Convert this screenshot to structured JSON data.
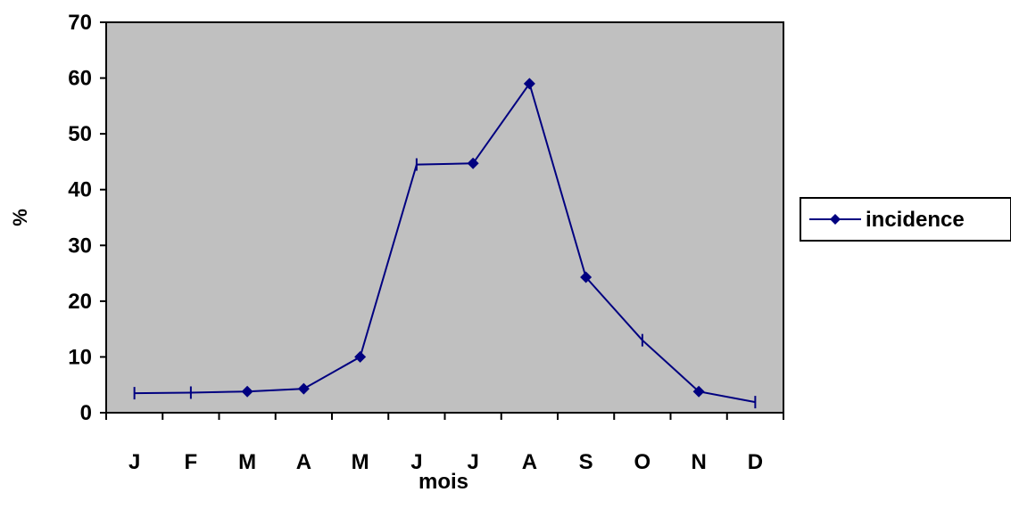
{
  "chart_data": {
    "type": "line",
    "xlabel": "mois",
    "ylabel": "%",
    "ylim": [
      0,
      70
    ],
    "yticks": [
      0,
      10,
      20,
      30,
      40,
      50,
      60,
      70
    ],
    "categories": [
      "J",
      "F",
      "M",
      "A",
      "M",
      "J",
      "J",
      "A",
      "S",
      "O",
      "N",
      "D"
    ],
    "series": [
      {
        "name": "incidence",
        "values": [
          3.5,
          3.6,
          3.8,
          4.3,
          10.0,
          44.5,
          44.7,
          59.0,
          24.3,
          13.0,
          3.8,
          1.9
        ]
      }
    ],
    "marker_styles": [
      "dash",
      "dash",
      "diamond",
      "diamond",
      "diamond",
      "dash",
      "diamond",
      "diamond",
      "diamond",
      "dash",
      "diamond",
      "dash"
    ],
    "grid": false,
    "legend": "right",
    "colors": {
      "plot_background": "#c0c0c0",
      "series": "#000080",
      "axis": "#000000"
    }
  }
}
